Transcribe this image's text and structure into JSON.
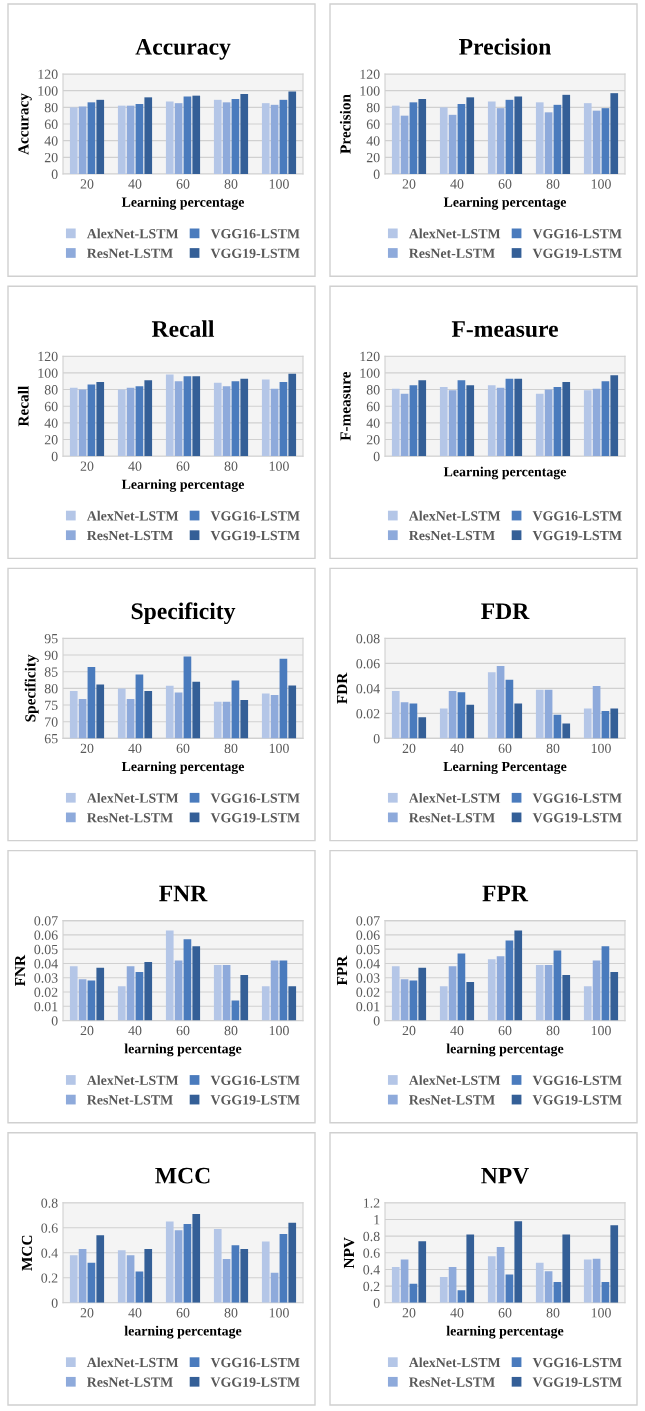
{
  "chart_data": [
    {
      "type": "bar",
      "title": "Accuracy",
      "ylabel": "Accuracy",
      "xlabel": "Learning percentage",
      "categories": [
        "20",
        "40",
        "60",
        "80",
        "100"
      ],
      "ylim": [
        0,
        120
      ],
      "yticks": [
        0,
        20,
        40,
        60,
        80,
        100,
        120
      ],
      "grid": "y",
      "legend": "bottom",
      "series": [
        {
          "name": "AlexNet-LSTM",
          "color": "#b4c6e7",
          "values": [
            80,
            82,
            87,
            89,
            85
          ]
        },
        {
          "name": "ResNet-LSTM",
          "color": "#8eaadb",
          "values": [
            81,
            82,
            85,
            86,
            83
          ]
        },
        {
          "name": "VGG16-LSTM",
          "color": "#4a7bbd",
          "values": [
            86,
            84,
            93,
            90,
            89
          ]
        },
        {
          "name": "VGG19-LSTM",
          "color": "#345f97",
          "values": [
            89,
            92,
            94,
            96,
            99
          ]
        }
      ]
    },
    {
      "type": "bar",
      "title": "Precision",
      "ylabel": "Precision",
      "xlabel": "Learning percentage",
      "categories": [
        "20",
        "40",
        "60",
        "80",
        "100"
      ],
      "ylim": [
        0,
        120
      ],
      "yticks": [
        0,
        20,
        40,
        60,
        80,
        100,
        120
      ],
      "grid": "y",
      "legend": "bottom",
      "series": [
        {
          "name": "AlexNet-LSTM",
          "color": "#b4c6e7",
          "values": [
            82,
            80,
            87,
            86,
            85
          ]
        },
        {
          "name": "ResNet-LSTM",
          "color": "#8eaadb",
          "values": [
            70,
            71,
            79,
            74,
            76
          ]
        },
        {
          "name": "VGG16-LSTM",
          "color": "#4a7bbd",
          "values": [
            86,
            84,
            89,
            83,
            79
          ]
        },
        {
          "name": "VGG19-LSTM",
          "color": "#345f97",
          "values": [
            90,
            92,
            93,
            95,
            97
          ]
        }
      ]
    },
    {
      "type": "bar",
      "title": "Recall",
      "ylabel": "Recall",
      "xlabel": "Learning percentage",
      "categories": [
        "20",
        "40",
        "60",
        "80",
        "100"
      ],
      "ylim": [
        0,
        120
      ],
      "yticks": [
        0,
        20,
        40,
        60,
        80,
        100,
        120
      ],
      "grid": "y",
      "legend": "bottom",
      "series": [
        {
          "name": "AlexNet-LSTM",
          "color": "#b4c6e7",
          "values": [
            82,
            80,
            98,
            88,
            92
          ]
        },
        {
          "name": "ResNet-LSTM",
          "color": "#8eaadb",
          "values": [
            80,
            82,
            90,
            84,
            81
          ]
        },
        {
          "name": "VGG16-LSTM",
          "color": "#4a7bbd",
          "values": [
            86,
            84,
            96,
            90,
            89
          ]
        },
        {
          "name": "VGG19-LSTM",
          "color": "#345f97",
          "values": [
            89,
            91,
            96,
            93,
            99
          ]
        }
      ]
    },
    {
      "type": "bar",
      "title": "F-measure",
      "ylabel": "F-measure",
      "xlabel": "Learning percentage",
      "categories": [
        null,
        null,
        null,
        null,
        null
      ],
      "ylim": [
        0,
        120
      ],
      "yticks": [
        0,
        20,
        40,
        60,
        80,
        100,
        120
      ],
      "grid": "y",
      "legend": "bottom",
      "series": [
        {
          "name": "AlexNet-LSTM",
          "color": "#b4c6e7",
          "values": [
            81,
            83,
            85,
            75,
            79
          ]
        },
        {
          "name": "ResNet-LSTM",
          "color": "#8eaadb",
          "values": [
            75,
            79,
            82,
            80,
            81
          ]
        },
        {
          "name": "VGG16-LSTM",
          "color": "#4a7bbd",
          "values": [
            85,
            91,
            93,
            83,
            90
          ]
        },
        {
          "name": "VGG19-LSTM",
          "color": "#345f97",
          "values": [
            91,
            85,
            93,
            89,
            97
          ]
        }
      ]
    },
    {
      "type": "bar",
      "title": "Specificity",
      "ylabel": "Specificity",
      "xlabel": "Learning percentage",
      "categories": [
        "20",
        "40",
        "60",
        "80",
        "100"
      ],
      "ylim": [
        65,
        95
      ],
      "yticks": [
        65,
        70,
        75,
        80,
        85,
        90,
        95
      ],
      "grid": "y",
      "legend": "bottom",
      "series": [
        {
          "name": "AlexNet-LSTM",
          "color": "#b4c6e7",
          "values": [
            79.2,
            80,
            80.8,
            76,
            78.5
          ]
        },
        {
          "name": "ResNet-LSTM",
          "color": "#8eaadb",
          "values": [
            76.8,
            76.8,
            78.8,
            76,
            78
          ]
        },
        {
          "name": "VGG16-LSTM",
          "color": "#4a7bbd",
          "values": [
            86.4,
            84.2,
            89.6,
            82.4,
            88.9
          ]
        },
        {
          "name": "VGG19-LSTM",
          "color": "#345f97",
          "values": [
            81.2,
            79.2,
            82,
            76.5,
            80.9
          ]
        }
      ]
    },
    {
      "type": "bar",
      "title": "FDR",
      "ylabel": "FDR",
      "xlabel": "Learning Percentage",
      "categories": [
        "20",
        "40",
        "60",
        "80",
        "100"
      ],
      "ylim": [
        0,
        0.08
      ],
      "yticks": [
        0,
        0.02,
        0.04,
        0.06,
        0.08
      ],
      "grid": "y",
      "legend": "bottom",
      "series": [
        {
          "name": "AlexNet-LSTM",
          "color": "#b4c6e7",
          "values": [
            0.038,
            0.024,
            0.053,
            0.039,
            0.024
          ]
        },
        {
          "name": "ResNet-LSTM",
          "color": "#8eaadb",
          "values": [
            0.029,
            0.038,
            0.058,
            0.039,
            0.042
          ]
        },
        {
          "name": "VGG16-LSTM",
          "color": "#4a7bbd",
          "values": [
            0.028,
            0.037,
            0.047,
            0.019,
            0.022
          ]
        },
        {
          "name": "VGG19-LSTM",
          "color": "#345f97",
          "values": [
            0.017,
            0.027,
            0.028,
            0.012,
            0.024
          ]
        }
      ]
    },
    {
      "type": "bar",
      "title": "FNR",
      "ylabel": "FNR",
      "xlabel": "learning percentage",
      "categories": [
        "20",
        "40",
        "60",
        "80",
        "100"
      ],
      "ylim": [
        0,
        0.07
      ],
      "yticks": [
        0,
        0.01,
        0.02,
        0.03,
        0.04,
        0.05,
        0.06,
        0.07
      ],
      "grid": "y",
      "legend": "bottom",
      "series": [
        {
          "name": "AlexNet-LSTM",
          "color": "#b4c6e7",
          "values": [
            0.038,
            0.024,
            0.063,
            0.039,
            0.024
          ]
        },
        {
          "name": "ResNet-LSTM",
          "color": "#8eaadb",
          "values": [
            0.029,
            0.038,
            0.042,
            0.039,
            0.042
          ]
        },
        {
          "name": "VGG16-LSTM",
          "color": "#4a7bbd",
          "values": [
            0.028,
            0.034,
            0.057,
            0.014,
            0.042
          ]
        },
        {
          "name": "VGG19-LSTM",
          "color": "#345f97",
          "values": [
            0.037,
            0.041,
            0.052,
            0.032,
            0.024
          ]
        }
      ]
    },
    {
      "type": "bar",
      "title": "FPR",
      "ylabel": "FPR",
      "xlabel": "learning percentage",
      "categories": [
        "20",
        "40",
        "60",
        "80",
        "100"
      ],
      "ylim": [
        0,
        0.07
      ],
      "yticks": [
        0,
        0.01,
        0.02,
        0.03,
        0.04,
        0.05,
        0.06,
        0.07
      ],
      "grid": "y",
      "legend": "bottom",
      "series": [
        {
          "name": "AlexNet-LSTM",
          "color": "#b4c6e7",
          "values": [
            0.038,
            0.024,
            0.043,
            0.039,
            0.024
          ]
        },
        {
          "name": "ResNet-LSTM",
          "color": "#8eaadb",
          "values": [
            0.029,
            0.038,
            0.045,
            0.039,
            0.042
          ]
        },
        {
          "name": "VGG16-LSTM",
          "color": "#4a7bbd",
          "values": [
            0.028,
            0.047,
            0.056,
            0.049,
            0.052
          ]
        },
        {
          "name": "VGG19-LSTM",
          "color": "#345f97",
          "values": [
            0.037,
            0.027,
            0.063,
            0.032,
            0.034
          ]
        }
      ]
    },
    {
      "type": "bar",
      "title": "MCC",
      "ylabel": "MCC",
      "xlabel": "learning percentage",
      "categories": [
        "20",
        "40",
        "60",
        "80",
        "100"
      ],
      "ylim": [
        0,
        0.8
      ],
      "yticks": [
        0,
        0.2,
        0.4,
        0.6,
        0.8
      ],
      "grid": "y",
      "legend": "bottom",
      "series": [
        {
          "name": "AlexNet-LSTM",
          "color": "#b4c6e7",
          "values": [
            0.38,
            0.42,
            0.65,
            0.59,
            0.49
          ]
        },
        {
          "name": "ResNet-LSTM",
          "color": "#8eaadb",
          "values": [
            0.43,
            0.38,
            0.58,
            0.35,
            0.24
          ]
        },
        {
          "name": "VGG16-LSTM",
          "color": "#4a7bbd",
          "values": [
            0.32,
            0.25,
            0.63,
            0.46,
            0.55
          ]
        },
        {
          "name": "VGG19-LSTM",
          "color": "#345f97",
          "values": [
            0.54,
            0.43,
            0.71,
            0.43,
            0.64
          ]
        }
      ]
    },
    {
      "type": "bar",
      "title": "NPV",
      "ylabel": "NPV",
      "xlabel": "learning percentage",
      "categories": [
        "20",
        "40",
        "60",
        "80",
        "100"
      ],
      "ylim": [
        0,
        1.2
      ],
      "yticks": [
        0,
        0.2,
        0.4,
        0.6,
        0.8,
        1,
        1.2
      ],
      "grid": "y",
      "legend": "bottom",
      "series": [
        {
          "name": "AlexNet-LSTM",
          "color": "#b4c6e7",
          "values": [
            0.43,
            0.31,
            0.56,
            0.48,
            0.52
          ]
        },
        {
          "name": "ResNet-LSTM",
          "color": "#8eaadb",
          "values": [
            0.52,
            0.43,
            0.67,
            0.38,
            0.53
          ]
        },
        {
          "name": "VGG16-LSTM",
          "color": "#4a7bbd",
          "values": [
            0.23,
            0.15,
            0.34,
            0.25,
            0.25
          ]
        },
        {
          "name": "VGG19-LSTM",
          "color": "#345f97",
          "values": [
            0.74,
            0.82,
            0.98,
            0.82,
            0.93
          ]
        }
      ]
    }
  ]
}
